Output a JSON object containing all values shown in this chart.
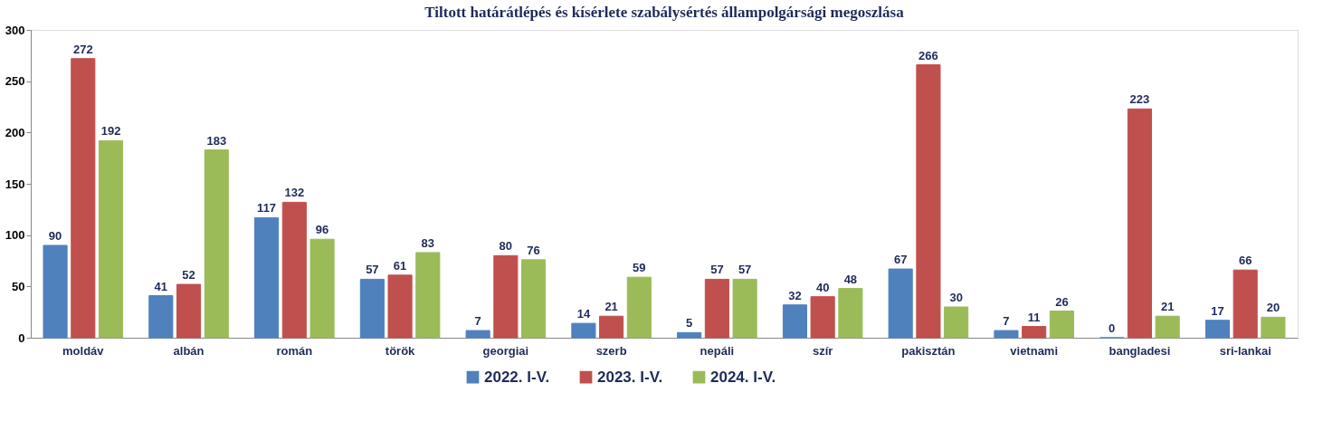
{
  "chart_data": {
    "type": "bar",
    "title": "Tiltott határátlépés és kísérlete szabálysértés állampolgársági megoszlása",
    "categories": [
      "moldáv",
      "albán",
      "román",
      "török",
      "georgiai",
      "szerb",
      "nepáli",
      "szír",
      "pakisztán",
      "vietnami",
      "bangladesi",
      "sri-lankai"
    ],
    "series": [
      {
        "name": "2022. I-V.",
        "color": "#4f81bd",
        "values": [
          90,
          41,
          117,
          57,
          7,
          14,
          5,
          32,
          67,
          7,
          0,
          17
        ]
      },
      {
        "name": "2023. I-V.",
        "color": "#c0504d",
        "values": [
          272,
          52,
          132,
          61,
          80,
          21,
          57,
          40,
          266,
          11,
          223,
          66
        ]
      },
      {
        "name": "2024. I-V.",
        "color": "#9bbb59",
        "values": [
          192,
          183,
          96,
          83,
          76,
          59,
          57,
          48,
          30,
          26,
          21,
          20
        ]
      }
    ],
    "ylim": [
      0,
      300
    ],
    "yticks": [
      0,
      50,
      100,
      150,
      200,
      250,
      300
    ],
    "grid": false,
    "legend": "bottom",
    "data_labels": true
  }
}
